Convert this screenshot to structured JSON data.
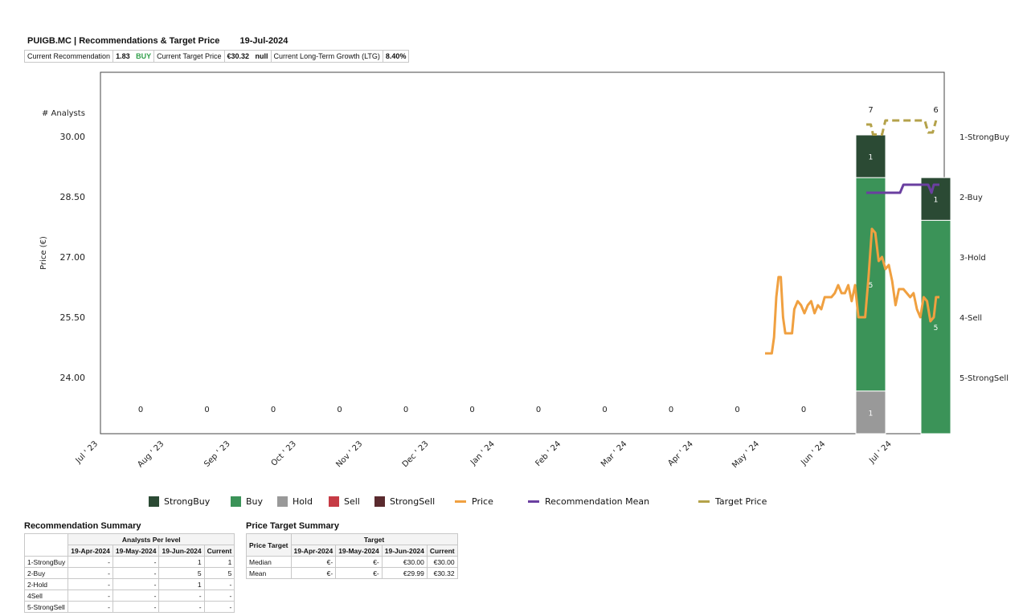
{
  "header": {
    "title": "PUIGB.MC | Recommendations & Target Price",
    "date": "19-Jul-2024",
    "rec_label": "Current Recommendation",
    "rec_value": "1.83",
    "rec_text": "BUY",
    "tp_label": "Current Target Price",
    "tp_value": "€30.32",
    "tp_null": "null",
    "ltg_label": "Current Long-Term Growth (LTG)",
    "ltg_value": "8.40%"
  },
  "colors": {
    "strongbuy": "#2b4a34",
    "buy": "#3b9358",
    "hold": "#999999",
    "sell": "#c63b45",
    "strongsell": "#5a2a2e",
    "price": "#f0a040",
    "recmean": "#6a3fa0",
    "target": "#b4a24a"
  },
  "chart_data": {
    "type": "bar",
    "title": "PUIGB.MC | Recommendations & Target Price",
    "ylabel": "Price (€)",
    "y2label": "# Analysts",
    "ylim": [
      22.6,
      31.6
    ],
    "yticks": [
      "30.00",
      "28.50",
      "27.00",
      "25.50",
      "24.00"
    ],
    "ytick_values": [
      30.0,
      28.5,
      27.0,
      25.5,
      24.0
    ],
    "rec_levels": [
      "1-StrongBuy",
      "2-Buy",
      "3-Hold",
      "4-Sell",
      "5-StrongSell"
    ],
    "months": [
      "Jul ' 23",
      "Aug ' 23",
      "Sep ' 23",
      "Oct ' 23",
      "Nov ' 23",
      "Dec ' 23",
      "Jan ' 24",
      "Feb ' 24",
      "Mar ' 24",
      "Apr ' 24",
      "May ' 24",
      "Jun ' 24",
      "Jul ' 24"
    ],
    "monthly_counts": [
      "0",
      "0",
      "0",
      "0",
      "0",
      "0",
      "0",
      "0",
      "0",
      "0",
      "0"
    ],
    "bars": [
      {
        "period": "Jun ' 24",
        "total": "7",
        "strongbuy": 1,
        "buy": 5,
        "hold": 1,
        "sell": 0,
        "strongsell": 0,
        "labels": {
          "strongbuy": "1",
          "buy": "5",
          "hold": "1"
        }
      },
      {
        "period": "Jul ' 24",
        "total": "6",
        "strongbuy": 1,
        "buy": 5,
        "hold": 0,
        "sell": 0,
        "strongsell": 0,
        "labels": {
          "strongbuy": "1",
          "buy": "5"
        }
      }
    ],
    "price_series": [
      [
        0.0,
        24.6
      ],
      [
        0.6,
        24.6
      ],
      [
        0.8,
        25.0
      ],
      [
        1.0,
        26.0
      ],
      [
        1.2,
        26.5
      ],
      [
        1.4,
        26.5
      ],
      [
        1.6,
        25.5
      ],
      [
        1.8,
        25.1
      ],
      [
        2.0,
        25.1
      ],
      [
        2.4,
        25.1
      ],
      [
        2.6,
        25.7
      ],
      [
        2.9,
        25.9
      ],
      [
        3.2,
        25.8
      ],
      [
        3.5,
        25.6
      ],
      [
        3.8,
        25.8
      ],
      [
        4.1,
        25.9
      ],
      [
        4.4,
        25.6
      ],
      [
        4.7,
        25.8
      ],
      [
        5.0,
        25.7
      ],
      [
        5.3,
        26.0
      ],
      [
        5.6,
        26.0
      ],
      [
        5.9,
        26.0
      ],
      [
        6.2,
        26.1
      ],
      [
        6.5,
        26.3
      ],
      [
        6.8,
        26.1
      ],
      [
        7.1,
        26.1
      ],
      [
        7.4,
        26.3
      ],
      [
        7.7,
        25.9
      ],
      [
        8.0,
        26.3
      ],
      [
        8.3,
        25.5
      ],
      [
        8.9,
        25.5
      ],
      [
        9.2,
        26.5
      ],
      [
        9.5,
        27.7
      ],
      [
        9.8,
        27.6
      ],
      [
        10.1,
        26.9
      ],
      [
        10.4,
        27.0
      ],
      [
        10.7,
        26.7
      ],
      [
        11.0,
        26.8
      ],
      [
        11.3,
        26.4
      ],
      [
        11.6,
        25.8
      ],
      [
        11.9,
        26.2
      ],
      [
        12.3,
        26.2
      ],
      [
        12.6,
        26.1
      ],
      [
        12.9,
        26.0
      ],
      [
        13.2,
        26.1
      ],
      [
        13.5,
        25.7
      ],
      [
        13.8,
        25.5
      ],
      [
        14.1,
        26.0
      ],
      [
        14.4,
        25.9
      ],
      [
        14.7,
        25.4
      ],
      [
        15.0,
        25.5
      ],
      [
        15.2,
        26.0
      ],
      [
        15.5,
        26.0
      ]
    ],
    "rec_mean_series": [
      [
        9.0,
        28.6
      ],
      [
        12.0,
        28.6
      ],
      [
        12.3,
        28.8
      ],
      [
        14.5,
        28.8
      ],
      [
        14.8,
        28.6
      ],
      [
        15.0,
        28.8
      ],
      [
        15.5,
        28.8
      ]
    ],
    "target_series": [
      [
        9.0,
        30.3
      ],
      [
        9.4,
        30.3
      ],
      [
        9.6,
        30.05
      ],
      [
        10.0,
        30.05
      ],
      [
        10.4,
        30.05
      ],
      [
        10.7,
        30.4
      ],
      [
        14.2,
        30.4
      ],
      [
        14.5,
        30.1
      ],
      [
        14.9,
        30.1
      ],
      [
        15.2,
        30.4
      ]
    ],
    "legend": [
      "StrongBuy",
      "Buy",
      "Hold",
      "Sell",
      "StrongSell",
      "Price",
      "Recommendation Mean",
      "Target Price"
    ]
  },
  "rec_summary": {
    "title": "Recommendation Summary",
    "group_header": "Analysts Per level",
    "columns": [
      "19-Apr-2024",
      "19-May-2024",
      "19-Jun-2024",
      "Current"
    ],
    "rows": [
      {
        "label": "1-StrongBuy",
        "values": [
          "-",
          "-",
          "1",
          "1"
        ]
      },
      {
        "label": "2-Buy",
        "values": [
          "-",
          "-",
          "5",
          "5"
        ]
      },
      {
        "label": "2-Hold",
        "values": [
          "-",
          "-",
          "1",
          "-"
        ]
      },
      {
        "label": "4Sell",
        "values": [
          "-",
          "-",
          "-",
          "-"
        ]
      },
      {
        "label": "5-StrongSell",
        "values": [
          "-",
          "-",
          "-",
          "-"
        ]
      }
    ]
  },
  "price_summary": {
    "title": "Price Target Summary",
    "row_header": "Price Target",
    "group_header": "Target",
    "columns": [
      "19-Apr-2024",
      "19-May-2024",
      "19-Jun-2024",
      "Current"
    ],
    "rows": [
      {
        "label": "Median",
        "values": [
          "€-",
          "€-",
          "€30.00",
          "€30.00"
        ]
      },
      {
        "label": "Mean",
        "values": [
          "€-",
          "€-",
          "€29.99",
          "€30.32"
        ]
      }
    ]
  }
}
